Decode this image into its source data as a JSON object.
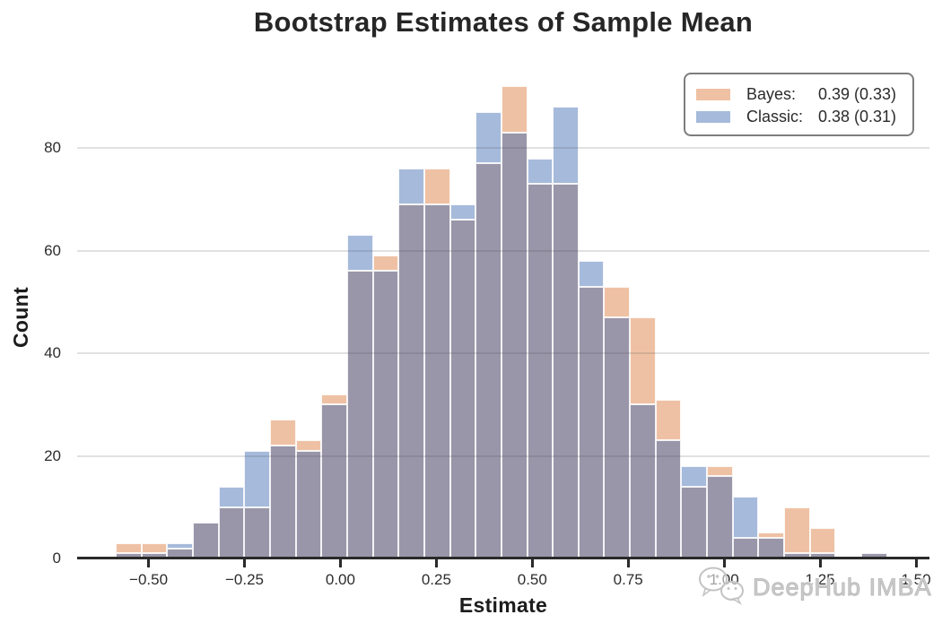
{
  "watermark": {
    "text": "DeepHub IMBA",
    "icon": "wechat-bubbles-icon",
    "color": "#c8c8c8"
  },
  "chart_data": {
    "type": "bar",
    "subtype": "overlaid-histogram",
    "title": "Bootstrap Estimates of Sample Mean",
    "xlabel": "Estimate",
    "ylabel": "Count",
    "xlim": [
      -0.686,
      1.535
    ],
    "ylim": [
      0,
      94
    ],
    "bin_width": 0.067,
    "grid": "horizontal-y",
    "legend_position": "upper-right",
    "x_ticks": [
      {
        "v": -0.5,
        "label": "−0.50"
      },
      {
        "v": -0.25,
        "label": "−0.25"
      },
      {
        "v": 0.0,
        "label": "0.00"
      },
      {
        "v": 0.25,
        "label": "0.25"
      },
      {
        "v": 0.5,
        "label": "0.50"
      },
      {
        "v": 0.75,
        "label": "0.75"
      },
      {
        "v": 1.0,
        "label": "1.00"
      },
      {
        "v": 1.25,
        "label": "1.25"
      },
      {
        "v": 1.5,
        "label": "1.50"
      }
    ],
    "y_ticks": [
      {
        "v": 0,
        "label": "0"
      },
      {
        "v": 20,
        "label": "20"
      },
      {
        "v": 40,
        "label": "40"
      },
      {
        "v": 60,
        "label": "60"
      },
      {
        "v": 80,
        "label": "80"
      }
    ],
    "series": [
      {
        "name": "Bayes",
        "legend_name": "Bayes:",
        "legend_value": "0.39 (0.33)",
        "color": "#efc1a4"
      },
      {
        "name": "Classic",
        "legend_name": "Classic:",
        "legend_value": "0.38 (0.31)",
        "color": "#a6badb"
      }
    ],
    "overlap_color": "#9a96a9",
    "gridline_color": "#dcdcdc",
    "axis_color": "#2a2a2a",
    "bins": [
      {
        "x": -0.552,
        "bayes": 3,
        "classic": 1
      },
      {
        "x": -0.485,
        "bayes": 3,
        "classic": 1
      },
      {
        "x": -0.418,
        "bayes": 2,
        "classic": 3
      },
      {
        "x": -0.351,
        "bayes": 7,
        "classic": 7
      },
      {
        "x": -0.284,
        "bayes": 10,
        "classic": 14
      },
      {
        "x": -0.217,
        "bayes": 10,
        "classic": 21
      },
      {
        "x": -0.15,
        "bayes": 27,
        "classic": 22
      },
      {
        "x": -0.083,
        "bayes": 23,
        "classic": 21
      },
      {
        "x": -0.016,
        "bayes": 32,
        "classic": 30
      },
      {
        "x": 0.051,
        "bayes": 56,
        "classic": 63
      },
      {
        "x": 0.118,
        "bayes": 59,
        "classic": 56
      },
      {
        "x": 0.185,
        "bayes": 69,
        "classic": 76
      },
      {
        "x": 0.252,
        "bayes": 76,
        "classic": 69
      },
      {
        "x": 0.319,
        "bayes": 66,
        "classic": 69
      },
      {
        "x": 0.386,
        "bayes": 77,
        "classic": 87
      },
      {
        "x": 0.453,
        "bayes": 92,
        "classic": 83
      },
      {
        "x": 0.52,
        "bayes": 73,
        "classic": 78
      },
      {
        "x": 0.587,
        "bayes": 73,
        "classic": 88
      },
      {
        "x": 0.654,
        "bayes": 53,
        "classic": 58
      },
      {
        "x": 0.721,
        "bayes": 53,
        "classic": 47
      },
      {
        "x": 0.788,
        "bayes": 47,
        "classic": 30
      },
      {
        "x": 0.855,
        "bayes": 31,
        "classic": 23
      },
      {
        "x": 0.922,
        "bayes": 14,
        "classic": 18
      },
      {
        "x": 0.989,
        "bayes": 18,
        "classic": 16
      },
      {
        "x": 1.056,
        "bayes": 4,
        "classic": 12
      },
      {
        "x": 1.123,
        "bayes": 5,
        "classic": 4
      },
      {
        "x": 1.19,
        "bayes": 10,
        "classic": 1
      },
      {
        "x": 1.257,
        "bayes": 6,
        "classic": 1
      },
      {
        "x": 1.324,
        "bayes": 0,
        "classic": 0
      },
      {
        "x": 1.391,
        "bayes": 1,
        "classic": 1
      }
    ]
  }
}
